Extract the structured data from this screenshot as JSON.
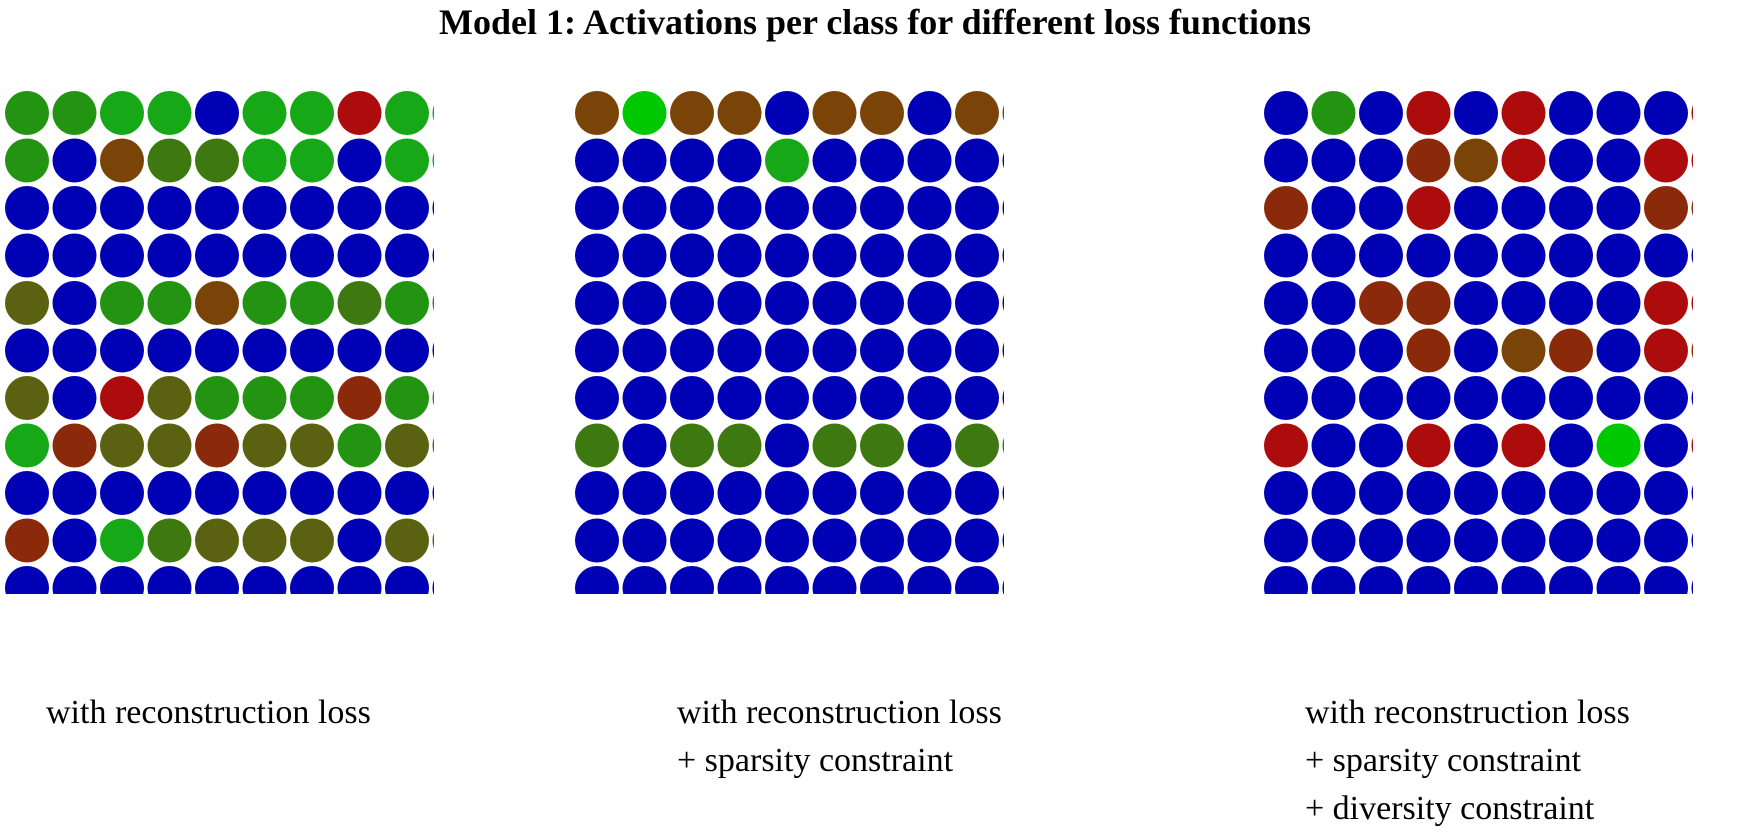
{
  "title": "Model 1: Activations per class for different loss functions",
  "colors": {
    "blue": "#0000b4",
    "green_bright": "#00c800",
    "green": "#16a816",
    "green_mid": "#229412",
    "olive_green": "#3e7810",
    "olive": "#5a6212",
    "brown": "#7a4408",
    "brown_red": "#8a2a0a",
    "red": "#ac0c0c"
  },
  "chart_data": [
    {
      "type": "heatmap",
      "rows": 12,
      "cols": 10,
      "caption_lines": [
        "with reconstruction loss"
      ],
      "legend": null,
      "grid": [
        [
          "green_mid",
          "green_mid",
          "green",
          "green",
          "blue",
          "green",
          "green",
          "red",
          "green",
          "green"
        ],
        [
          "green_mid",
          "blue",
          "brown",
          "olive_green",
          "olive_green",
          "green",
          "green",
          "blue",
          "green",
          "green"
        ],
        [
          "blue",
          "blue",
          "blue",
          "blue",
          "blue",
          "blue",
          "blue",
          "blue",
          "blue",
          "blue"
        ],
        [
          "blue",
          "blue",
          "blue",
          "blue",
          "blue",
          "blue",
          "blue",
          "blue",
          "blue",
          "blue"
        ],
        [
          "olive",
          "blue",
          "green_mid",
          "green_mid",
          "brown",
          "green_mid",
          "green_mid",
          "olive_green",
          "green_mid",
          "green_mid"
        ],
        [
          "blue",
          "blue",
          "blue",
          "blue",
          "blue",
          "blue",
          "blue",
          "blue",
          "blue",
          "blue"
        ],
        [
          "olive",
          "blue",
          "red",
          "olive",
          "green_mid",
          "green_mid",
          "green_mid",
          "brown_red",
          "green_mid",
          "green_mid"
        ],
        [
          "green",
          "brown_red",
          "olive",
          "olive",
          "brown_red",
          "olive",
          "olive",
          "green_mid",
          "olive",
          "olive"
        ],
        [
          "blue",
          "blue",
          "blue",
          "blue",
          "blue",
          "blue",
          "blue",
          "blue",
          "blue",
          "blue"
        ],
        [
          "brown_red",
          "blue",
          "green",
          "olive_green",
          "olive",
          "olive",
          "olive",
          "blue",
          "olive",
          "olive"
        ],
        [
          "blue",
          "blue",
          "blue",
          "blue",
          "blue",
          "blue",
          "blue",
          "blue",
          "blue",
          "blue"
        ],
        [
          "blue",
          "blue",
          "blue",
          "blue",
          "blue",
          "blue",
          "blue",
          "blue",
          "blue",
          "blue"
        ]
      ]
    },
    {
      "type": "heatmap",
      "rows": 12,
      "cols": 10,
      "caption_lines": [
        "with reconstruction loss",
        "+ sparsity constraint"
      ],
      "legend": null,
      "grid": [
        [
          "brown",
          "green_bright",
          "brown",
          "brown",
          "blue",
          "brown",
          "brown",
          "blue",
          "brown",
          "brown"
        ],
        [
          "blue",
          "blue",
          "blue",
          "blue",
          "green",
          "blue",
          "blue",
          "blue",
          "blue",
          "blue"
        ],
        [
          "blue",
          "blue",
          "blue",
          "blue",
          "blue",
          "blue",
          "blue",
          "blue",
          "blue",
          "blue"
        ],
        [
          "blue",
          "blue",
          "blue",
          "blue",
          "blue",
          "blue",
          "blue",
          "blue",
          "blue",
          "blue"
        ],
        [
          "blue",
          "blue",
          "blue",
          "blue",
          "blue",
          "blue",
          "blue",
          "blue",
          "blue",
          "blue"
        ],
        [
          "blue",
          "blue",
          "blue",
          "blue",
          "blue",
          "blue",
          "blue",
          "blue",
          "blue",
          "blue"
        ],
        [
          "blue",
          "blue",
          "blue",
          "blue",
          "blue",
          "blue",
          "blue",
          "blue",
          "blue",
          "blue"
        ],
        [
          "olive_green",
          "blue",
          "olive_green",
          "olive_green",
          "blue",
          "olive_green",
          "olive_green",
          "blue",
          "olive_green",
          "olive_green"
        ],
        [
          "blue",
          "blue",
          "blue",
          "blue",
          "blue",
          "blue",
          "blue",
          "blue",
          "blue",
          "blue"
        ],
        [
          "blue",
          "blue",
          "blue",
          "blue",
          "blue",
          "blue",
          "blue",
          "blue",
          "blue",
          "blue"
        ],
        [
          "blue",
          "blue",
          "blue",
          "blue",
          "blue",
          "blue",
          "blue",
          "blue",
          "blue",
          "blue"
        ],
        [
          "blue",
          "blue",
          "blue",
          "blue",
          "blue",
          "blue",
          "blue",
          "blue",
          "blue",
          "blue"
        ]
      ]
    },
    {
      "type": "heatmap",
      "rows": 12,
      "cols": 10,
      "caption_lines": [
        "with reconstruction loss",
        "+ sparsity constraint",
        "+ diversity constraint"
      ],
      "legend": null,
      "grid": [
        [
          "blue",
          "green_mid",
          "blue",
          "red",
          "blue",
          "red",
          "blue",
          "blue",
          "blue",
          "red"
        ],
        [
          "blue",
          "blue",
          "blue",
          "brown_red",
          "brown",
          "red",
          "blue",
          "blue",
          "red",
          "red"
        ],
        [
          "brown_red",
          "blue",
          "blue",
          "red",
          "blue",
          "blue",
          "blue",
          "blue",
          "brown_red",
          "brown_red"
        ],
        [
          "blue",
          "blue",
          "blue",
          "blue",
          "blue",
          "blue",
          "blue",
          "blue",
          "blue",
          "blue"
        ],
        [
          "blue",
          "blue",
          "brown_red",
          "brown_red",
          "blue",
          "blue",
          "blue",
          "blue",
          "red",
          "red"
        ],
        [
          "blue",
          "blue",
          "blue",
          "brown_red",
          "blue",
          "brown",
          "brown_red",
          "blue",
          "red",
          "brown_red"
        ],
        [
          "blue",
          "blue",
          "blue",
          "blue",
          "blue",
          "blue",
          "blue",
          "blue",
          "blue",
          "blue"
        ],
        [
          "red",
          "blue",
          "blue",
          "red",
          "blue",
          "red",
          "blue",
          "green_bright",
          "blue",
          "red"
        ],
        [
          "blue",
          "blue",
          "blue",
          "blue",
          "blue",
          "blue",
          "blue",
          "blue",
          "blue",
          "blue"
        ],
        [
          "blue",
          "blue",
          "blue",
          "blue",
          "blue",
          "blue",
          "blue",
          "blue",
          "blue",
          "blue"
        ],
        [
          "blue",
          "blue",
          "blue",
          "blue",
          "blue",
          "blue",
          "blue",
          "blue",
          "blue",
          "blue"
        ],
        [
          "blue",
          "blue",
          "blue",
          "blue",
          "blue",
          "blue",
          "blue",
          "blue",
          "blue",
          "blue"
        ]
      ]
    }
  ]
}
